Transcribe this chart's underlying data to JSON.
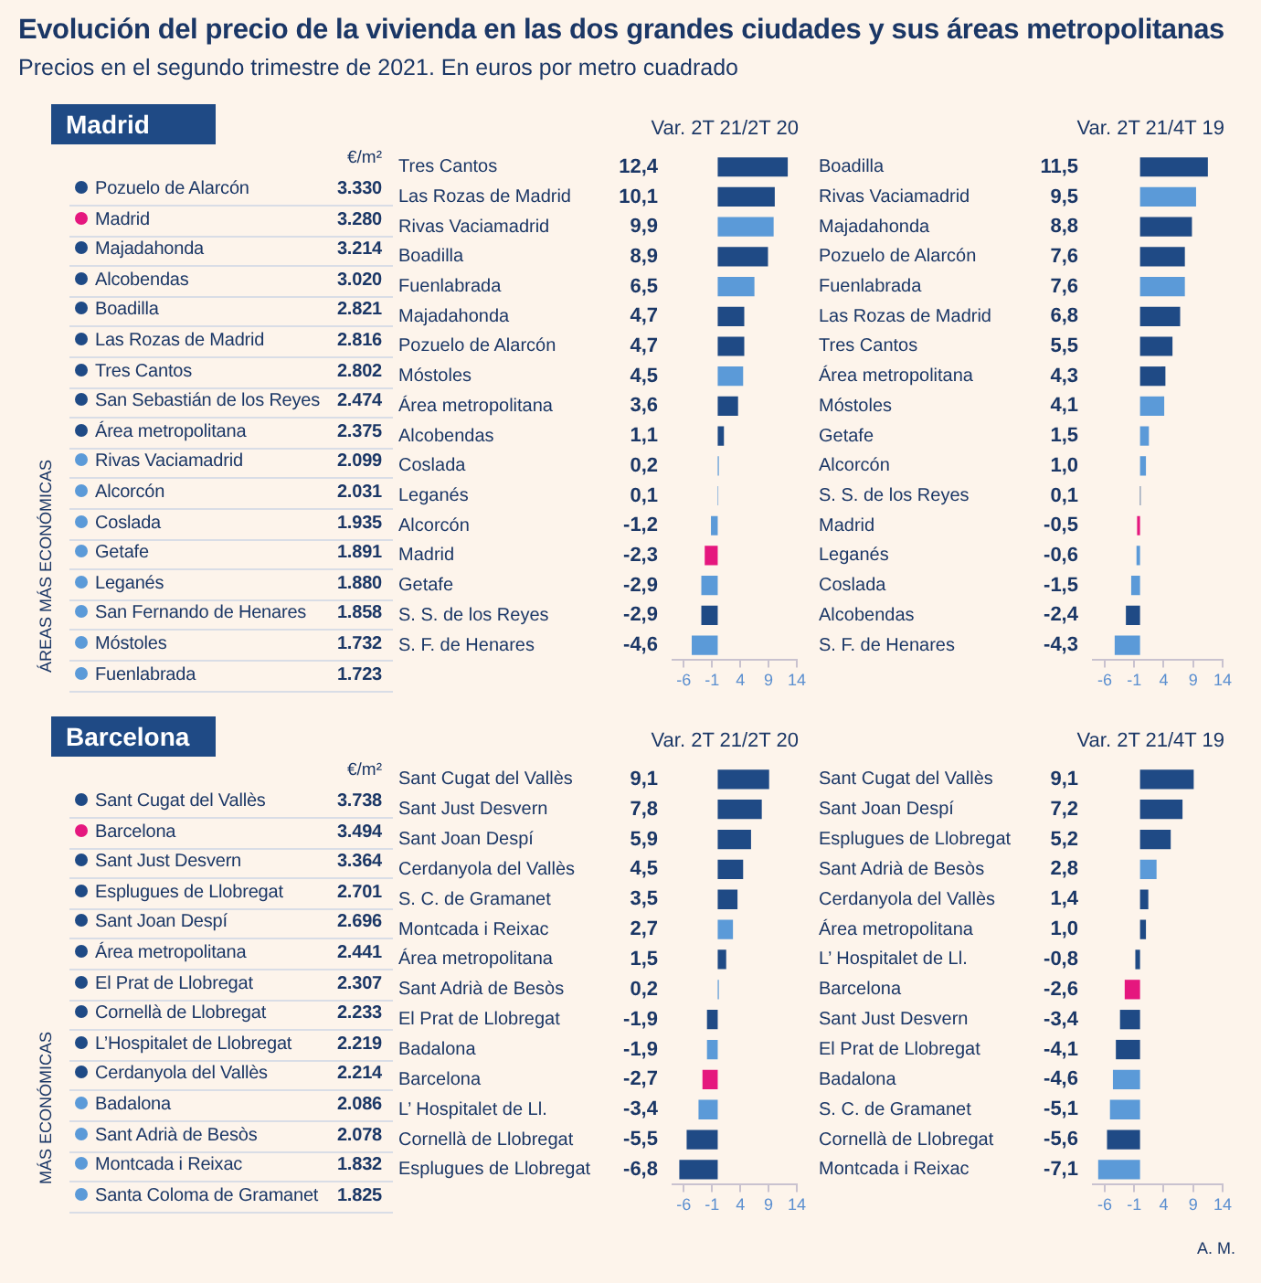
{
  "chart_data": [
    {
      "type": "other",
      "title": "Evolución del precio de la vivienda en las dos grandes ciudades y sus áreas metropolitanas",
      "subtitle": "Precios en el segundo trimestre de 2021. En euros por metro cuadrado",
      "annotations": [
        "A. M."
      ]
    },
    {
      "type": "other",
      "title": "Madrid",
      "xlabel": "€/m²",
      "annotations": [
        "ÁREAS MÁS ECONÓMICAS"
      ],
      "categories": [
        "Pozuelo de Alarcón",
        "Madrid",
        "Majadahonda",
        "Alcobendas",
        "Boadilla",
        "Las Rozas de Madrid",
        "Tres Cantos",
        "San Sebastián de los Reyes",
        "Área metropolitana",
        "Rivas Vaciamadrid",
        "Alcorcón",
        "Coslada",
        "Getafe",
        "Leganés",
        "San Fernando de Henares",
        "Móstoles",
        "Fuenlabrada"
      ],
      "values": [
        3330,
        3280,
        3214,
        3020,
        2821,
        2816,
        2802,
        2474,
        2375,
        2099,
        2031,
        1935,
        1891,
        1880,
        1858,
        1732,
        1723
      ],
      "value_labels": [
        "3.330",
        "3.280",
        "3.214",
        "3.020",
        "2.821",
        "2.816",
        "2.802",
        "2.474",
        "2.375",
        "2.099",
        "2.031",
        "1.935",
        "1.891",
        "1.880",
        "1.858",
        "1.732",
        "1.723"
      ],
      "colors": [
        "#1f4a85",
        "#e5177e",
        "#1f4a85",
        "#1f4a85",
        "#1f4a85",
        "#1f4a85",
        "#1f4a85",
        "#1f4a85",
        "#1f4a85",
        "#5b9ad8",
        "#5b9ad8",
        "#5b9ad8",
        "#5b9ad8",
        "#5b9ad8",
        "#5b9ad8",
        "#5b9ad8",
        "#5b9ad8"
      ]
    },
    {
      "type": "bar",
      "orientation": "horizontal",
      "title": "Var. 2T 21/2T 20",
      "xlim": [
        -8,
        14
      ],
      "xticks": [
        -6,
        -1,
        4,
        9,
        14
      ],
      "categories": [
        "Tres Cantos",
        "Las Rozas de Madrid",
        "Rivas Vaciamadrid",
        "Boadilla",
        "Fuenlabrada",
        "Majadahonda",
        "Pozuelo de Alarcón",
        "Móstoles",
        "Área metropolitana",
        "Alcobendas",
        "Coslada",
        "Leganés",
        "Alcorcón",
        "Madrid",
        "Getafe",
        "S. S. de los Reyes",
        "S. F. de Henares"
      ],
      "values": [
        12.4,
        10.1,
        9.9,
        8.9,
        6.5,
        4.7,
        4.7,
        4.5,
        3.6,
        1.1,
        0.2,
        0.1,
        -1.2,
        -2.3,
        -2.9,
        -2.9,
        -4.6
      ],
      "value_labels": [
        "12,4",
        "10,1",
        "9,9",
        "8,9",
        "6,5",
        "4,7",
        "4,7",
        "4,5",
        "3,6",
        "1,1",
        "0,2",
        "0,1",
        "-1,2",
        "-2,3",
        "-2,9",
        "-2,9",
        "-4,6"
      ],
      "colors": [
        "#1f4a85",
        "#1f4a85",
        "#5b9ad8",
        "#1f4a85",
        "#5b9ad8",
        "#1f4a85",
        "#1f4a85",
        "#5b9ad8",
        "#1f4a85",
        "#1f4a85",
        "#5b9ad8",
        "#5b9ad8",
        "#5b9ad8",
        "#e5177e",
        "#5b9ad8",
        "#1f4a85",
        "#5b9ad8"
      ]
    },
    {
      "type": "bar",
      "orientation": "horizontal",
      "title": "Var. 2T 21/4T 19",
      "xlim": [
        -8,
        14
      ],
      "xticks": [
        -6,
        -1,
        4,
        9,
        14
      ],
      "categories": [
        "Boadilla",
        "Rivas Vaciamadrid",
        "Majadahonda",
        "Pozuelo de Alarcón",
        "Fuenlabrada",
        "Las Rozas de Madrid",
        "Tres Cantos",
        "Área metropolitana",
        "Móstoles",
        "Getafe",
        "Alcorcón",
        "S. S. de los Reyes",
        "Madrid",
        "Leganés",
        "Coslada",
        "Alcobendas",
        "S. F. de Henares"
      ],
      "values": [
        11.5,
        9.5,
        8.8,
        7.6,
        7.6,
        6.8,
        5.5,
        4.3,
        4.1,
        1.5,
        1.0,
        0.1,
        -0.5,
        -0.6,
        -1.5,
        -2.4,
        -4.3
      ],
      "value_labels": [
        "11,5",
        "9,5",
        "8,8",
        "7,6",
        "7,6",
        "6,8",
        "5,5",
        "4,3",
        "4,1",
        "1,5",
        "1,0",
        "0,1",
        "-0,5",
        "-0,6",
        "-1,5",
        "-2,4",
        "-4,3"
      ],
      "colors": [
        "#1f4a85",
        "#5b9ad8",
        "#1f4a85",
        "#1f4a85",
        "#5b9ad8",
        "#1f4a85",
        "#1f4a85",
        "#1f4a85",
        "#5b9ad8",
        "#5b9ad8",
        "#5b9ad8",
        "#1f4a85",
        "#e5177e",
        "#5b9ad8",
        "#5b9ad8",
        "#1f4a85",
        "#5b9ad8"
      ]
    },
    {
      "type": "other",
      "title": "Barcelona",
      "xlabel": "€/m²",
      "annotations": [
        "MÁS ECONÓMICAS"
      ],
      "categories": [
        "Sant Cugat del Vallès",
        "Barcelona",
        "Sant Just Desvern",
        "Esplugues de Llobregat",
        "Sant Joan Despí",
        "Área metropolitana",
        "El Prat de Llobregat",
        "Cornellà de Llobregat",
        "L’Hospitalet de Llobregat",
        "Cerdanyola del Vallès",
        "Badalona",
        "Sant Adrià de Besòs",
        "Montcada i Reixac",
        "Santa Coloma de Gramanet"
      ],
      "values": [
        3738,
        3494,
        3364,
        2701,
        2696,
        2441,
        2307,
        2233,
        2219,
        2214,
        2086,
        2078,
        1832,
        1825
      ],
      "value_labels": [
        "3.738",
        "3.494",
        "3.364",
        "2.701",
        "2.696",
        "2.441",
        "2.307",
        "2.233",
        "2.219",
        "2.214",
        "2.086",
        "2.078",
        "1.832",
        "1.825"
      ],
      "colors": [
        "#1f4a85",
        "#e5177e",
        "#1f4a85",
        "#1f4a85",
        "#1f4a85",
        "#1f4a85",
        "#1f4a85",
        "#1f4a85",
        "#1f4a85",
        "#1f4a85",
        "#5b9ad8",
        "#5b9ad8",
        "#5b9ad8",
        "#5b9ad8"
      ]
    },
    {
      "type": "bar",
      "orientation": "horizontal",
      "title": "Var. 2T 21/2T 20",
      "xlim": [
        -8,
        14
      ],
      "xticks": [
        -6,
        -1,
        4,
        9,
        14
      ],
      "categories": [
        "Sant Cugat del Vallès",
        "Sant Just Desvern",
        "Sant Joan Despí",
        "Cerdanyola del Vallès",
        "S. C. de Gramanet",
        "Montcada i Reixac",
        "Área metropolitana",
        "Sant Adrià de Besòs",
        "El Prat de Llobregat",
        "Badalona",
        "Barcelona",
        "L’ Hospitalet de Ll.",
        "Cornellà de Llobregat",
        "Esplugues de Llobregat"
      ],
      "values": [
        9.1,
        7.8,
        5.9,
        4.5,
        3.5,
        2.7,
        1.5,
        0.2,
        -1.9,
        -1.9,
        -2.7,
        -3.4,
        -5.5,
        -6.8
      ],
      "value_labels": [
        "9,1",
        "7,8",
        "5,9",
        "4,5",
        "3,5",
        "2,7",
        "1,5",
        "0,2",
        "-1,9",
        "-1,9",
        "-2,7",
        "-3,4",
        "-5,5",
        "-6,8"
      ],
      "colors": [
        "#1f4a85",
        "#1f4a85",
        "#1f4a85",
        "#1f4a85",
        "#1f4a85",
        "#5b9ad8",
        "#1f4a85",
        "#5b9ad8",
        "#1f4a85",
        "#5b9ad8",
        "#e5177e",
        "#5b9ad8",
        "#1f4a85",
        "#1f4a85"
      ]
    },
    {
      "type": "bar",
      "orientation": "horizontal",
      "title": "Var. 2T 21/4T 19",
      "xlim": [
        -8,
        14
      ],
      "xticks": [
        -6,
        -1,
        4,
        9,
        14
      ],
      "categories": [
        "Sant Cugat del Vallès",
        "Sant Joan Despí",
        "Esplugues de Llobregat",
        "Sant Adrià de Besòs",
        "Cerdanyola del Vallès",
        "Área metropolitana",
        "L’ Hospitalet de Ll.",
        "Barcelona",
        "Sant Just Desvern",
        "El Prat de Llobregat",
        "Badalona",
        "S. C. de Gramanet",
        "Cornellà de Llobregat",
        "Montcada i Reixac"
      ],
      "values": [
        9.1,
        7.2,
        5.2,
        2.8,
        1.4,
        1.0,
        -0.8,
        -2.6,
        -3.4,
        -4.1,
        -4.6,
        -5.1,
        -5.6,
        -7.1
      ],
      "value_labels": [
        "9,1",
        "7,2",
        "5,2",
        "2,8",
        "1,4",
        "1,0",
        "-0,8",
        "-2,6",
        "-3,4",
        "-4,1",
        "-4,6",
        "-5,1",
        "-5,6",
        "-7,1"
      ],
      "colors": [
        "#1f4a85",
        "#1f4a85",
        "#1f4a85",
        "#5b9ad8",
        "#1f4a85",
        "#1f4a85",
        "#1f4a85",
        "#e5177e",
        "#1f4a85",
        "#1f4a85",
        "#5b9ad8",
        "#5b9ad8",
        "#1f4a85",
        "#5b9ad8"
      ]
    }
  ]
}
